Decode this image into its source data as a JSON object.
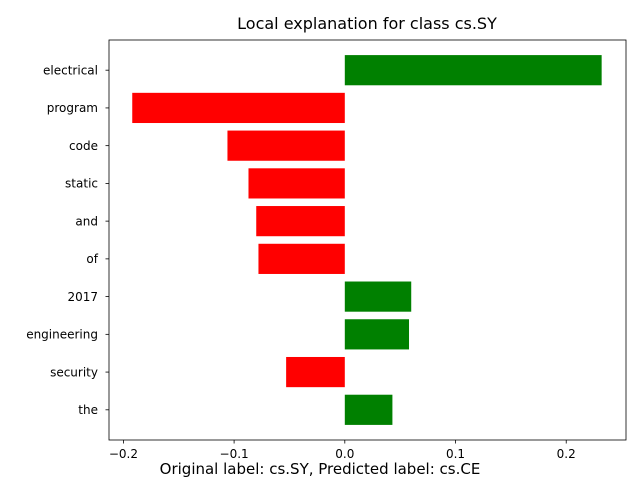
{
  "chart_data": {
    "type": "bar",
    "orientation": "horizontal",
    "title": "Local explanation for class cs.SY",
    "caption": "Original label: cs.SY, Predicted label: cs.CE",
    "xlabel": "",
    "ylabel": "",
    "categories": [
      "electrical",
      "program",
      "code",
      "static",
      "and",
      "of",
      "2017",
      "engineering",
      "security",
      "the"
    ],
    "values": [
      0.232,
      -0.192,
      -0.106,
      -0.087,
      -0.08,
      -0.078,
      0.06,
      0.058,
      -0.053,
      0.043
    ],
    "xlim": [
      -0.213,
      0.254
    ],
    "xticks": [
      -0.2,
      -0.1,
      0.0,
      0.1,
      0.2
    ],
    "xtick_labels": [
      "−0.2",
      "−0.1",
      "0.0",
      "0.1",
      "0.2"
    ],
    "colors": {
      "positive": "#008000",
      "negative": "#ff0000"
    },
    "grid": false
  }
}
